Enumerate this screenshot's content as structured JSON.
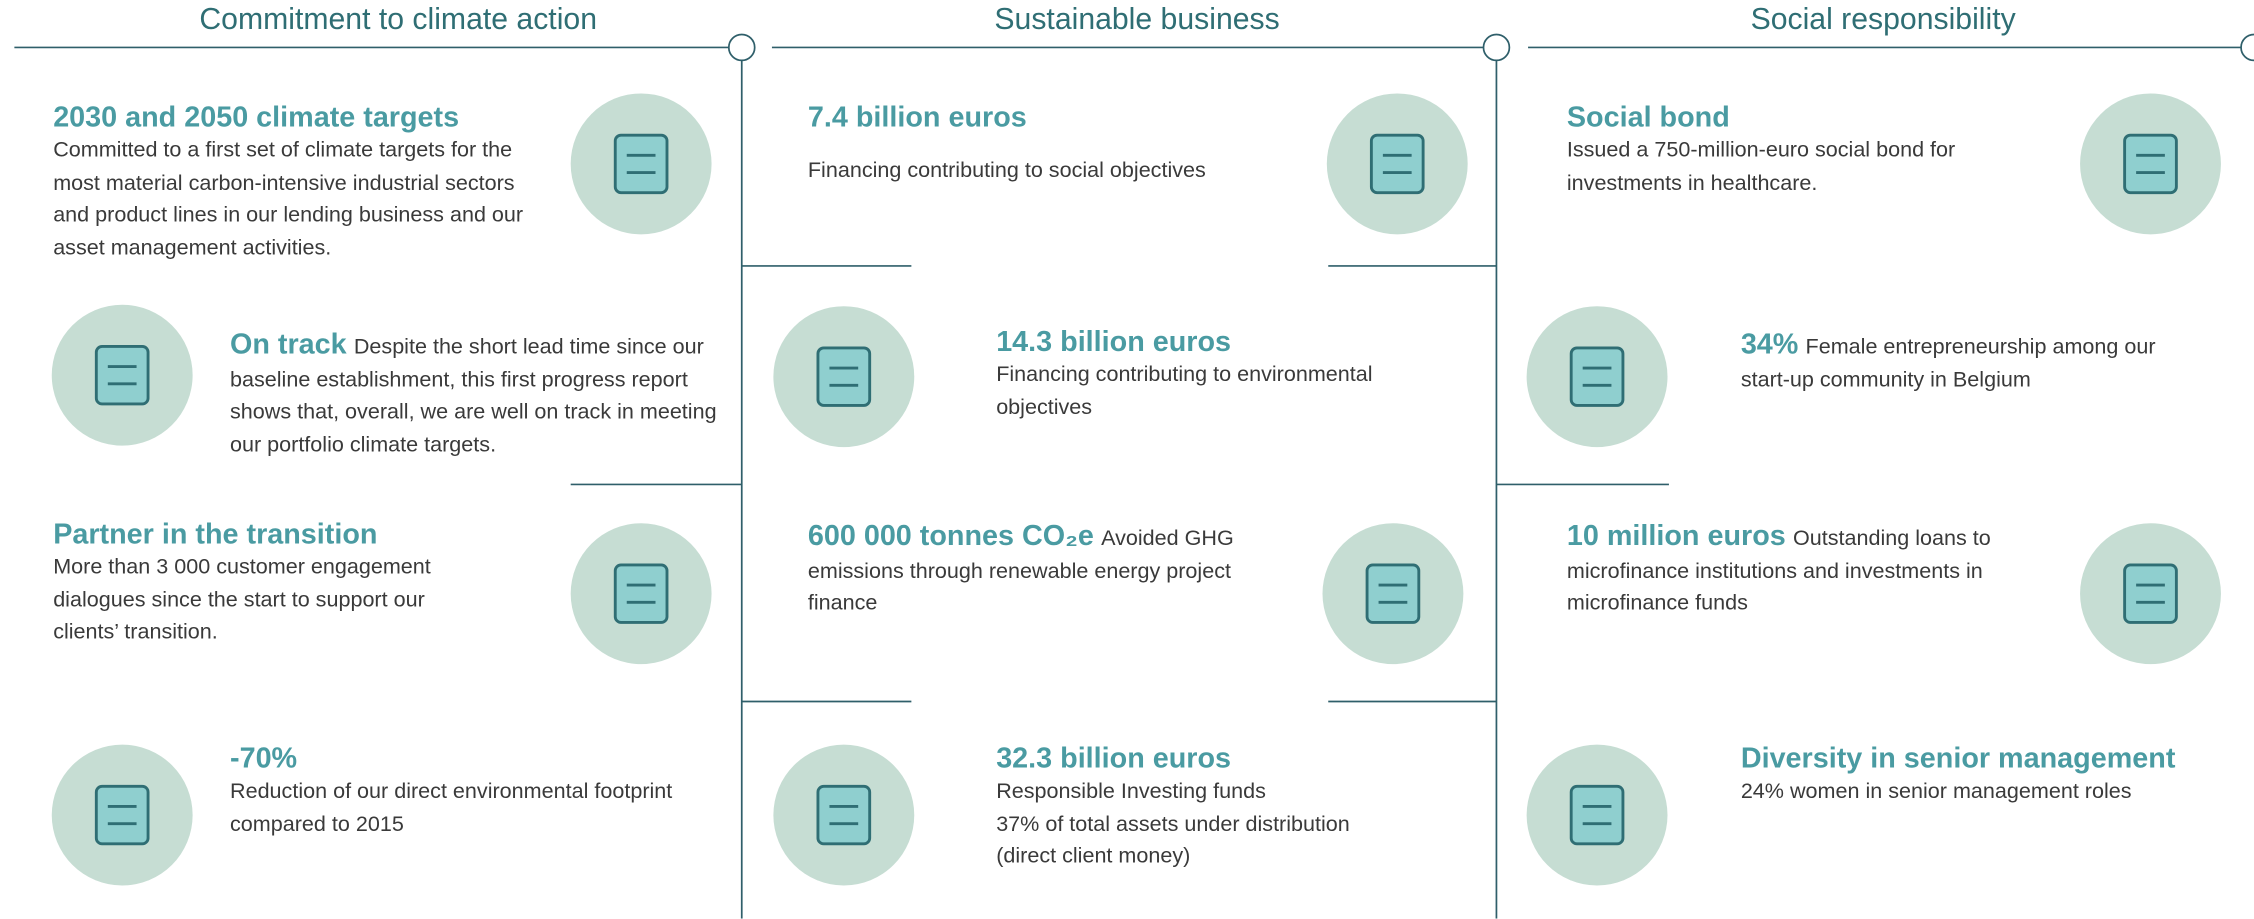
{
  "columns": [
    {
      "title": "Commitment to climate action",
      "items": [
        {
          "heading": "2030 and 2050 climate targets",
          "text": [
            "Committed to a first set of climate targets for the most material carbon-intensive industrial sectors and product lines in our lending business and our asset management activities."
          ]
        },
        {
          "heading": "On track",
          "text": [
            "Despite the short lead time since our baseline establishment, this first progress report shows that, overall, we are well on track in meeting our portfolio climate targets."
          ]
        },
        {
          "heading": "Partner in the transition",
          "text": [
            "More than 3 000 customer engagement dialogues since the start to support our clients’ transition."
          ]
        },
        {
          "heading": "-70%",
          "text": [
            "Reduction of our direct environmental footprint compared to 2015"
          ]
        }
      ]
    },
    {
      "title": "Sustainable business",
      "items": [
        {
          "heading": "7.4 billion euros",
          "text": [
            "Financing contributing to social objectives"
          ]
        },
        {
          "heading": "14.3 billion euros",
          "text": [
            "Financing contributing to environmental objectives"
          ]
        },
        {
          "heading": "600 000 tonnes CO₂e",
          "text": [
            "Avoided GHG emissions through renewable energy project finance"
          ]
        },
        {
          "heading": "32.3 billion euros",
          "text": [
            "Responsible Investing funds",
            "37% of total assets under distribution (direct client money)"
          ]
        }
      ]
    },
    {
      "title": "Social responsibility",
      "items": [
        {
          "heading": "Social bond",
          "text": [
            "Issued a 750-million-euro social bond for investments in healthcare."
          ]
        },
        {
          "heading": "34%",
          "text": [
            "Female entrepreneurship among our start-up community in Belgium"
          ]
        },
        {
          "heading": "10 million euros",
          "text": [
            "Outstanding loans to microfinance institutions and investments in microfinance funds"
          ]
        },
        {
          "heading": "Diversity in senior management",
          "text": [
            "24% women in senior management roles"
          ]
        }
      ]
    }
  ]
}
